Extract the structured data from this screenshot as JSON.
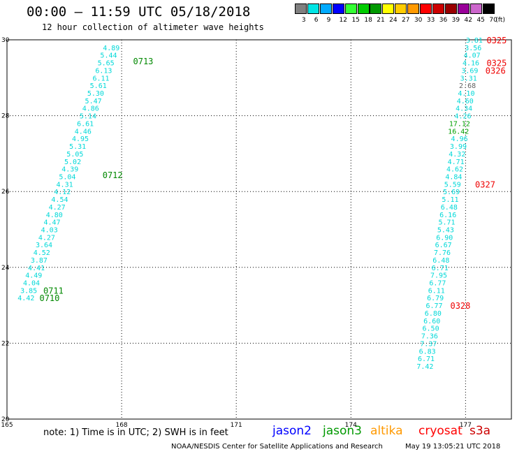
{
  "header": {
    "title": "00:00 – 11:59 UTC 05/18/2018",
    "subtitle": "12 hour collection of altimeter wave heights"
  },
  "legend": {
    "unit": "(ft)",
    "bins": [
      {
        "label": "3",
        "color": "#808080"
      },
      {
        "label": "6",
        "color": "#00e5e5"
      },
      {
        "label": "9",
        "color": "#00aaff"
      },
      {
        "label": "12",
        "color": "#0000ff"
      },
      {
        "label": "15",
        "color": "#33ff33"
      },
      {
        "label": "18",
        "color": "#00cc00"
      },
      {
        "label": "21",
        "color": "#009900"
      },
      {
        "label": "24",
        "color": "#ffff00"
      },
      {
        "label": "27",
        "color": "#ffcc00"
      },
      {
        "label": "30",
        "color": "#ff9900"
      },
      {
        "label": "33",
        "color": "#ff0000"
      },
      {
        "label": "36",
        "color": "#cc0000"
      },
      {
        "label": "39",
        "color": "#990000"
      },
      {
        "label": "42",
        "color": "#990099"
      },
      {
        "label": "45",
        "color": "#cc66cc"
      },
      {
        "label": "70",
        "color": "#000000"
      }
    ]
  },
  "footer": {
    "note": "note: 1) Time is in UTC; 2) SWH is in feet",
    "satellites": [
      {
        "name": "jason2",
        "color": "#0000ff"
      },
      {
        "name": "jason3",
        "color": "#009900"
      },
      {
        "name": "altika",
        "color": "#ff9900"
      },
      {
        "name": "cryosat",
        "color": "#ff0000"
      },
      {
        "name": "s3a",
        "color": "#cc0000"
      }
    ],
    "credit": "NOAA/NESDIS Center for Satellite Applications and Research",
    "timestamp": "May 19 13:05:21 UTC 2018"
  },
  "chart_data": {
    "type": "scatter",
    "title": "00:00 – 11:59 UTC 05/18/2018",
    "subtitle": "12 hour collection of altimeter wave heights",
    "xlim": [
      165,
      178.2
    ],
    "ylim": [
      20,
      30
    ],
    "x_ticks": [
      "165",
      "168",
      "171",
      "174",
      "177"
    ],
    "y_ticks": [
      "20",
      "22",
      "24",
      "26",
      "28",
      "30"
    ],
    "grid": true,
    "colors": {
      "cyan": "#00d8d8",
      "green": "#00a000",
      "gray": "#606060",
      "red": "#ff0000"
    },
    "tracks": [
      {
        "satellite": "jason3",
        "points": [
          {
            "x": 167.95,
            "y": 29.8,
            "v": "4.89",
            "c": "cyan"
          },
          {
            "x": 167.88,
            "y": 29.6,
            "v": "5.44",
            "c": "cyan"
          },
          {
            "x": 167.81,
            "y": 29.4,
            "v": "5.65",
            "c": "cyan"
          },
          {
            "x": 167.75,
            "y": 29.2,
            "v": "6.13",
            "c": "cyan"
          },
          {
            "x": 167.68,
            "y": 29.0,
            "v": "6.11",
            "c": "cyan"
          },
          {
            "x": 167.61,
            "y": 28.8,
            "v": "5.61",
            "c": "cyan"
          },
          {
            "x": 167.54,
            "y": 28.6,
            "v": "5.30",
            "c": "cyan"
          },
          {
            "x": 167.48,
            "y": 28.4,
            "v": "5.47",
            "c": "cyan"
          },
          {
            "x": 167.41,
            "y": 28.2,
            "v": "4.86",
            "c": "cyan"
          },
          {
            "x": 167.34,
            "y": 28.0,
            "v": "5.14",
            "c": "cyan"
          },
          {
            "x": 167.27,
            "y": 27.8,
            "v": "6.61",
            "c": "cyan"
          },
          {
            "x": 167.21,
            "y": 27.6,
            "v": "4.46",
            "c": "cyan"
          },
          {
            "x": 167.14,
            "y": 27.4,
            "v": "4.95",
            "c": "cyan"
          },
          {
            "x": 167.07,
            "y": 27.2,
            "v": "5.31",
            "c": "cyan"
          },
          {
            "x": 167.0,
            "y": 27.0,
            "v": "5.05",
            "c": "cyan"
          },
          {
            "x": 166.94,
            "y": 26.8,
            "v": "5.02",
            "c": "cyan"
          },
          {
            "x": 166.87,
            "y": 26.6,
            "v": "4.39",
            "c": "cyan"
          },
          {
            "x": 166.8,
            "y": 26.4,
            "v": "5.04",
            "c": "cyan"
          },
          {
            "x": 166.73,
            "y": 26.2,
            "v": "4.31",
            "c": "cyan"
          },
          {
            "x": 166.67,
            "y": 26.0,
            "v": "4.12",
            "c": "cyan"
          },
          {
            "x": 166.6,
            "y": 25.8,
            "v": "4.54",
            "c": "cyan"
          },
          {
            "x": 166.53,
            "y": 25.6,
            "v": "4.27",
            "c": "cyan"
          },
          {
            "x": 166.46,
            "y": 25.4,
            "v": "4.80",
            "c": "cyan"
          },
          {
            "x": 166.4,
            "y": 25.2,
            "v": "4.47",
            "c": "cyan"
          },
          {
            "x": 166.33,
            "y": 25.0,
            "v": "4.03",
            "c": "cyan"
          },
          {
            "x": 166.26,
            "y": 24.8,
            "v": "4.27",
            "c": "cyan"
          },
          {
            "x": 166.19,
            "y": 24.6,
            "v": "3.64",
            "c": "cyan"
          },
          {
            "x": 166.13,
            "y": 24.4,
            "v": "4.52",
            "c": "cyan"
          },
          {
            "x": 166.06,
            "y": 24.2,
            "v": "3.87",
            "c": "cyan"
          },
          {
            "x": 165.99,
            "y": 24.0,
            "v": "4.41",
            "c": "cyan"
          },
          {
            "x": 165.92,
            "y": 23.8,
            "v": "4.49",
            "c": "cyan"
          },
          {
            "x": 165.86,
            "y": 23.6,
            "v": "4.04",
            "c": "cyan"
          },
          {
            "x": 165.79,
            "y": 23.4,
            "v": "3.85",
            "c": "cyan"
          },
          {
            "x": 165.72,
            "y": 23.2,
            "v": "4.42",
            "c": "cyan"
          }
        ],
        "times": [
          {
            "x": 168.3,
            "y": 29.45,
            "t": "0713"
          },
          {
            "x": 167.5,
            "y": 26.45,
            "t": "0712"
          },
          {
            "x": 165.95,
            "y": 23.4,
            "t": "0711"
          },
          {
            "x": 165.85,
            "y": 23.2,
            "t": "0710"
          }
        ]
      },
      {
        "satellite": "cryosat",
        "points": [
          {
            "x": 177.45,
            "y": 30.0,
            "v": "3.81",
            "c": "cyan"
          },
          {
            "x": 177.42,
            "y": 29.8,
            "v": "3.56",
            "c": "cyan"
          },
          {
            "x": 177.39,
            "y": 29.6,
            "v": "4.07",
            "c": "cyan"
          },
          {
            "x": 177.36,
            "y": 29.4,
            "v": "4.16",
            "c": "cyan"
          },
          {
            "x": 177.33,
            "y": 29.2,
            "v": "3.69",
            "c": "cyan"
          },
          {
            "x": 177.3,
            "y": 29.0,
            "v": "3.31",
            "c": "cyan"
          },
          {
            "x": 177.27,
            "y": 28.8,
            "v": "2.68",
            "c": "gray"
          },
          {
            "x": 177.24,
            "y": 28.6,
            "v": "4.10",
            "c": "cyan"
          },
          {
            "x": 177.21,
            "y": 28.4,
            "v": "4.60",
            "c": "cyan"
          },
          {
            "x": 177.18,
            "y": 28.2,
            "v": "4.34",
            "c": "cyan"
          },
          {
            "x": 177.15,
            "y": 28.0,
            "v": "4.26",
            "c": "cyan"
          },
          {
            "x": 177.12,
            "y": 27.8,
            "v": "17.12",
            "c": "green"
          },
          {
            "x": 177.09,
            "y": 27.6,
            "v": "16.42",
            "c": "green"
          },
          {
            "x": 177.06,
            "y": 27.4,
            "v": "4.96",
            "c": "cyan"
          },
          {
            "x": 177.03,
            "y": 27.2,
            "v": "3.99",
            "c": "cyan"
          },
          {
            "x": 177.0,
            "y": 27.0,
            "v": "4.32",
            "c": "cyan"
          },
          {
            "x": 176.97,
            "y": 26.8,
            "v": "4.71",
            "c": "cyan"
          },
          {
            "x": 176.94,
            "y": 26.6,
            "v": "4.62",
            "c": "cyan"
          },
          {
            "x": 176.91,
            "y": 26.4,
            "v": "4.84",
            "c": "cyan"
          },
          {
            "x": 176.88,
            "y": 26.2,
            "v": "5.59",
            "c": "cyan"
          },
          {
            "x": 176.85,
            "y": 26.0,
            "v": "5.69",
            "c": "cyan"
          },
          {
            "x": 176.82,
            "y": 25.8,
            "v": "5.11",
            "c": "cyan"
          },
          {
            "x": 176.79,
            "y": 25.6,
            "v": "6.48",
            "c": "cyan"
          },
          {
            "x": 176.76,
            "y": 25.4,
            "v": "6.16",
            "c": "cyan"
          },
          {
            "x": 176.73,
            "y": 25.2,
            "v": "5.71",
            "c": "cyan"
          },
          {
            "x": 176.7,
            "y": 25.0,
            "v": "5.43",
            "c": "cyan"
          },
          {
            "x": 176.67,
            "y": 24.8,
            "v": "6.90",
            "c": "cyan"
          },
          {
            "x": 176.64,
            "y": 24.6,
            "v": "6.67",
            "c": "cyan"
          },
          {
            "x": 176.61,
            "y": 24.4,
            "v": "7.76",
            "c": "cyan"
          },
          {
            "x": 176.58,
            "y": 24.2,
            "v": "6.48",
            "c": "cyan"
          },
          {
            "x": 176.55,
            "y": 24.0,
            "v": "6.71",
            "c": "cyan"
          },
          {
            "x": 176.52,
            "y": 23.8,
            "v": "7.95",
            "c": "cyan"
          },
          {
            "x": 176.49,
            "y": 23.6,
            "v": "6.77",
            "c": "cyan"
          },
          {
            "x": 176.46,
            "y": 23.4,
            "v": "6.11",
            "c": "cyan"
          },
          {
            "x": 176.43,
            "y": 23.2,
            "v": "6.79",
            "c": "cyan"
          },
          {
            "x": 176.4,
            "y": 23.0,
            "v": "6.77",
            "c": "cyan"
          },
          {
            "x": 176.37,
            "y": 22.8,
            "v": "6.80",
            "c": "cyan"
          },
          {
            "x": 176.34,
            "y": 22.6,
            "v": "6.60",
            "c": "cyan"
          },
          {
            "x": 176.31,
            "y": 22.4,
            "v": "6.50",
            "c": "cyan"
          },
          {
            "x": 176.28,
            "y": 22.2,
            "v": "7.36",
            "c": "cyan"
          },
          {
            "x": 176.25,
            "y": 22.0,
            "v": "7.37",
            "c": "cyan"
          },
          {
            "x": 176.22,
            "y": 21.8,
            "v": "6.83",
            "c": "cyan"
          },
          {
            "x": 176.19,
            "y": 21.6,
            "v": "6.71",
            "c": "cyan"
          },
          {
            "x": 176.16,
            "y": 21.4,
            "v": "7.42",
            "c": "cyan"
          }
        ],
        "times": [
          {
            "x": 177.55,
            "y": 30.0,
            "t": "0325"
          },
          {
            "x": 177.55,
            "y": 29.4,
            "t": "0325"
          },
          {
            "x": 177.52,
            "y": 29.2,
            "t": "0326"
          },
          {
            "x": 177.25,
            "y": 26.2,
            "t": "0327"
          },
          {
            "x": 176.6,
            "y": 23.0,
            "t": "0328"
          }
        ]
      }
    ]
  }
}
